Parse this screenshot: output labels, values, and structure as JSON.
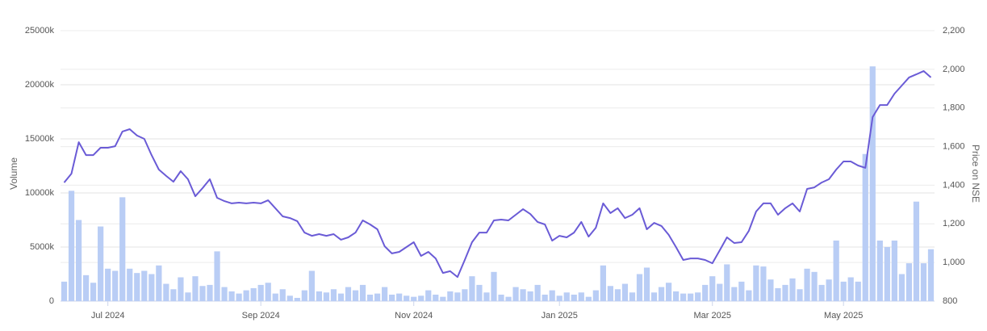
{
  "chart_data": {
    "type": "bar-line",
    "ylabel": "Volume",
    "y2label": "Price on NSE",
    "categories": [
      null,
      null,
      null,
      null,
      null,
      null,
      "Jul 2024",
      null,
      null,
      null,
      null,
      null,
      null,
      null,
      null,
      null,
      null,
      null,
      null,
      null,
      null,
      null,
      null,
      null,
      null,
      null,
      null,
      "Sep 2024",
      null,
      null,
      null,
      null,
      null,
      null,
      null,
      null,
      null,
      null,
      null,
      null,
      null,
      null,
      null,
      null,
      null,
      null,
      null,
      null,
      "Nov 2024",
      null,
      null,
      null,
      null,
      null,
      null,
      null,
      null,
      null,
      null,
      null,
      null,
      null,
      null,
      null,
      null,
      null,
      null,
      null,
      "Jan 2025",
      null,
      null,
      null,
      null,
      null,
      null,
      null,
      null,
      null,
      null,
      null,
      null,
      null,
      null,
      null,
      null,
      null,
      null,
      null,
      null,
      "Mar 2025",
      null,
      null,
      null,
      null,
      null,
      null,
      null,
      null,
      null,
      null,
      null,
      null,
      null,
      null,
      null,
      null,
      null,
      "May 2025",
      null,
      null,
      null,
      null,
      null,
      null,
      null,
      null,
      null,
      null,
      null,
      null
    ],
    "series": [
      {
        "type": "bar",
        "color": "#b9cdf5",
        "values": [
          1800,
          10200,
          7500,
          2400,
          1700,
          6900,
          3000,
          2800,
          9600,
          3000,
          2600,
          2800,
          2500,
          3300,
          1600,
          1100,
          2200,
          800,
          2300,
          1400,
          1500,
          4600,
          1300,
          900,
          700,
          1000,
          1200,
          1500,
          1700,
          700,
          1100,
          500,
          300,
          1000,
          2800,
          900,
          800,
          1100,
          700,
          1300,
          1000,
          1500,
          600,
          700,
          1300,
          600,
          700,
          500,
          400,
          500,
          1000,
          600,
          400,
          900,
          800,
          1100,
          2300,
          1500,
          800,
          2700,
          600,
          400,
          1300,
          1100,
          900,
          1500,
          600,
          1000,
          500,
          800,
          600,
          800,
          400,
          1000,
          3300,
          1400,
          1100,
          1600,
          800,
          2500,
          3100,
          800,
          1300,
          1700,
          900,
          700,
          700,
          800,
          1500,
          2300,
          1600,
          3400,
          1300,
          1800,
          1000,
          3300,
          3200,
          2000,
          1200,
          1500,
          2100,
          1100,
          3000,
          2700,
          1500,
          2000,
          5600,
          1800,
          2200,
          1800,
          13600,
          21700,
          5600,
          5000,
          5600,
          2500,
          3500,
          9200,
          3500,
          4800
        ]
      },
      {
        "type": "line",
        "axis": "y2",
        "color": "#6a5bd6",
        "values": [
          1414,
          1460,
          1623,
          1556,
          1556,
          1594,
          1594,
          1602,
          1678,
          1690,
          1657,
          1640,
          1556,
          1481,
          1448,
          1418,
          1473,
          1431,
          1343,
          1385,
          1431,
          1335,
          1318,
          1306,
          1310,
          1306,
          1310,
          1306,
          1322,
          1281,
          1239,
          1230,
          1214,
          1155,
          1138,
          1147,
          1138,
          1147,
          1118,
          1130,
          1155,
          1218,
          1197,
          1172,
          1084,
          1047,
          1055,
          1080,
          1105,
          1034,
          1055,
          1021,
          946,
          955,
          925,
          1013,
          1105,
          1155,
          1155,
          1218,
          1222,
          1218,
          1247,
          1276,
          1251,
          1210,
          1197,
          1113,
          1138,
          1130,
          1155,
          1210,
          1134,
          1180,
          1306,
          1256,
          1281,
          1230,
          1247,
          1281,
          1172,
          1205,
          1189,
          1143,
          1080,
          1013,
          1021,
          1021,
          1013,
          996,
          1063,
          1130,
          1101,
          1105,
          1164,
          1264,
          1306,
          1306,
          1247,
          1281,
          1306,
          1264,
          1381,
          1389,
          1414,
          1431,
          1481,
          1523,
          1523,
          1502,
          1490,
          1753,
          1815,
          1815,
          1874,
          1916,
          1958,
          1974,
          1991,
          1958
        ]
      }
    ],
    "ylim": [
      0,
      25000
    ],
    "yticks": [
      0,
      {
        "value": 5000,
        "label": "5000k"
      },
      {
        "value": 10000,
        "label": "10000k"
      },
      {
        "value": 15000,
        "label": "15000k"
      },
      {
        "value": 20000,
        "label": "20000k"
      },
      {
        "value": 25000,
        "label": "25000k"
      }
    ],
    "y2lim": [
      800,
      2200
    ],
    "y2ticks": [
      800,
      {
        "value": 1000,
        "label": "1,000"
      },
      {
        "value": 1200,
        "label": "1,200"
      },
      {
        "value": 1400,
        "label": "1,400"
      },
      {
        "value": 1600,
        "label": "1,600"
      },
      {
        "value": 1800,
        "label": "1,800"
      },
      {
        "value": 2000,
        "label": "2,000"
      },
      {
        "value": 2200,
        "label": "2,200"
      }
    ],
    "grid": true
  }
}
